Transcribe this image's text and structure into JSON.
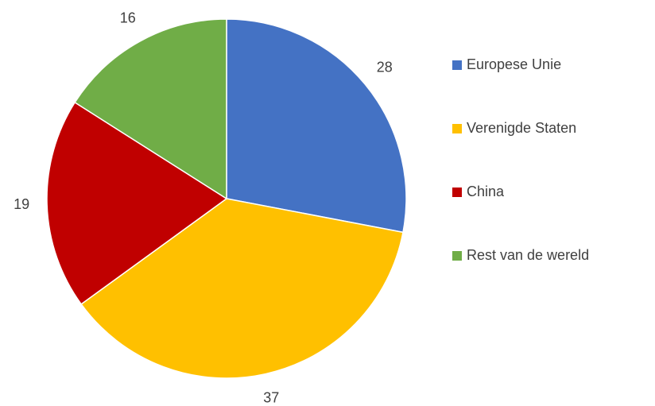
{
  "chart_data": {
    "type": "pie",
    "categories": [
      "Europese Unie",
      "Verenigde Staten",
      "China",
      "Rest van de wereld"
    ],
    "values": [
      28,
      37,
      19,
      16
    ],
    "colors": [
      "#4472c4",
      "#ffc000",
      "#c00000",
      "#70ad47"
    ],
    "legend": "right"
  }
}
